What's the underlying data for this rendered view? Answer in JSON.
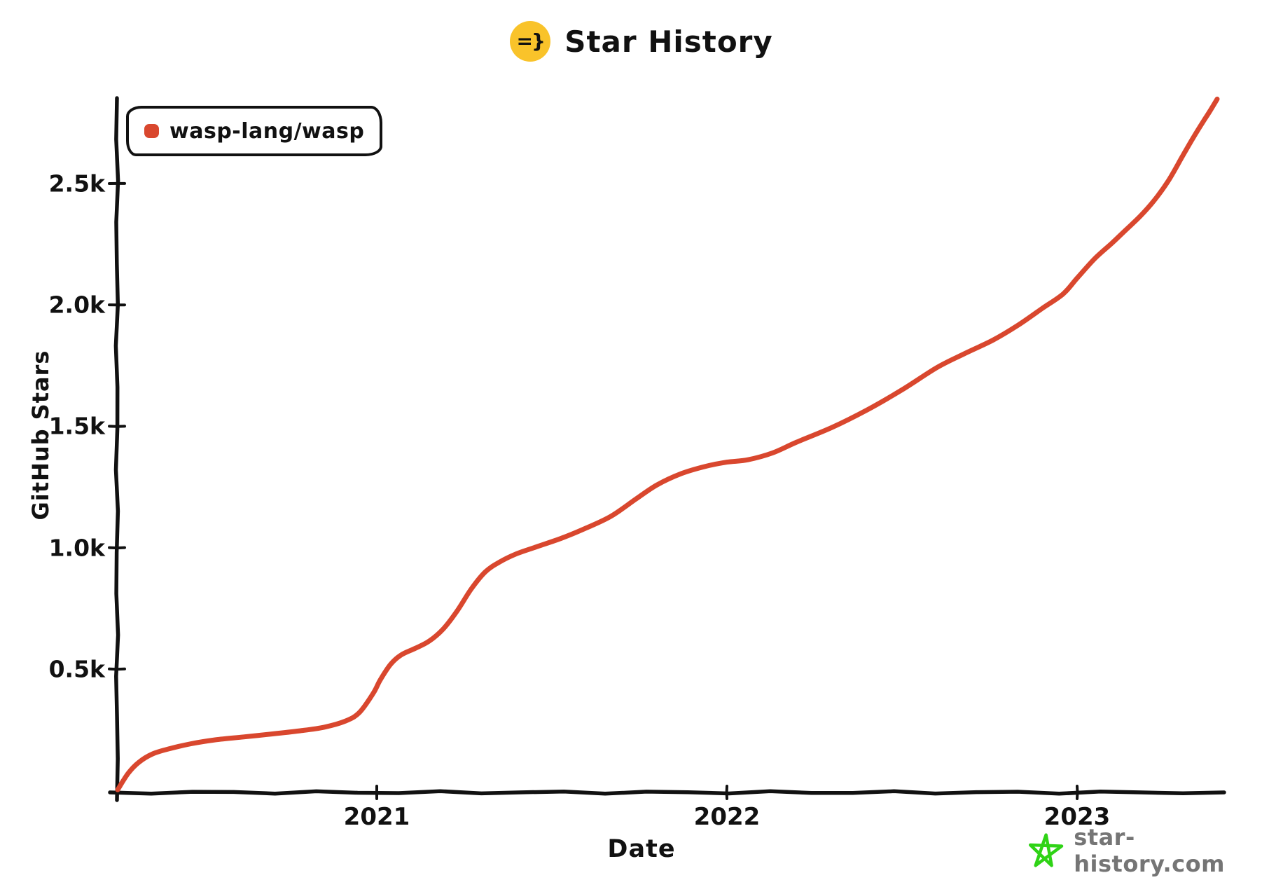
{
  "title": {
    "text": "Star History",
    "logo_glyph": "=}",
    "logo_color": "#F9C32A"
  },
  "legend": {
    "items": [
      {
        "label": "wasp-lang/wasp",
        "color": "#D9472E"
      }
    ]
  },
  "footer": {
    "site": "star-history.com",
    "star_color": "#2FD316",
    "text_color": "#757575"
  },
  "colors": {
    "axis": "#111111",
    "background": "#ffffff"
  },
  "chart_data": {
    "type": "line",
    "title": "Star History",
    "xlabel": "Date",
    "ylabel": "GitHub Stars",
    "grid": false,
    "legend_position": "top-left",
    "x_unit": "decimal_year",
    "x_range": [
      2020.25,
      2023.42
    ],
    "y_range": [
      0,
      2852
    ],
    "x_ticks": [
      {
        "value": 2021,
        "label": "2021"
      },
      {
        "value": 2022,
        "label": "2022"
      },
      {
        "value": 2023,
        "label": "2023"
      }
    ],
    "y_ticks": [
      {
        "value": 500,
        "label": "0.5k"
      },
      {
        "value": 1000,
        "label": "1.0k"
      },
      {
        "value": 1500,
        "label": "1.5k"
      },
      {
        "value": 2000,
        "label": "2.0k"
      },
      {
        "value": 2500,
        "label": "2.5k"
      }
    ],
    "series": [
      {
        "name": "wasp-lang/wasp",
        "color": "#D9472E",
        "points": [
          [
            2020.26,
            2
          ],
          [
            2020.29,
            70
          ],
          [
            2020.32,
            115
          ],
          [
            2020.36,
            150
          ],
          [
            2020.41,
            172
          ],
          [
            2020.47,
            192
          ],
          [
            2020.54,
            208
          ],
          [
            2020.62,
            220
          ],
          [
            2020.7,
            232
          ],
          [
            2020.78,
            245
          ],
          [
            2020.85,
            260
          ],
          [
            2020.91,
            285
          ],
          [
            2020.95,
            320
          ],
          [
            2020.99,
            400
          ],
          [
            2021.01,
            455
          ],
          [
            2021.04,
            520
          ],
          [
            2021.07,
            558
          ],
          [
            2021.11,
            585
          ],
          [
            2021.15,
            615
          ],
          [
            2021.19,
            665
          ],
          [
            2021.23,
            740
          ],
          [
            2021.27,
            830
          ],
          [
            2021.31,
            900
          ],
          [
            2021.35,
            940
          ],
          [
            2021.4,
            975
          ],
          [
            2021.46,
            1005
          ],
          [
            2021.53,
            1040
          ],
          [
            2021.6,
            1082
          ],
          [
            2021.67,
            1130
          ],
          [
            2021.74,
            1200
          ],
          [
            2021.8,
            1258
          ],
          [
            2021.87,
            1305
          ],
          [
            2021.94,
            1335
          ],
          [
            2022.0,
            1352
          ],
          [
            2022.06,
            1362
          ],
          [
            2022.13,
            1390
          ],
          [
            2022.2,
            1435
          ],
          [
            2022.3,
            1495
          ],
          [
            2022.4,
            1567
          ],
          [
            2022.5,
            1650
          ],
          [
            2022.6,
            1742
          ],
          [
            2022.68,
            1800
          ],
          [
            2022.76,
            1855
          ],
          [
            2022.83,
            1915
          ],
          [
            2022.9,
            1985
          ],
          [
            2022.96,
            2045
          ],
          [
            2023.0,
            2110
          ],
          [
            2023.05,
            2190
          ],
          [
            2023.1,
            2255
          ],
          [
            2023.14,
            2310
          ],
          [
            2023.18,
            2365
          ],
          [
            2023.22,
            2430
          ],
          [
            2023.26,
            2510
          ],
          [
            2023.3,
            2610
          ],
          [
            2023.33,
            2685
          ],
          [
            2023.36,
            2755
          ],
          [
            2023.38,
            2800
          ],
          [
            2023.4,
            2848
          ]
        ]
      }
    ]
  }
}
